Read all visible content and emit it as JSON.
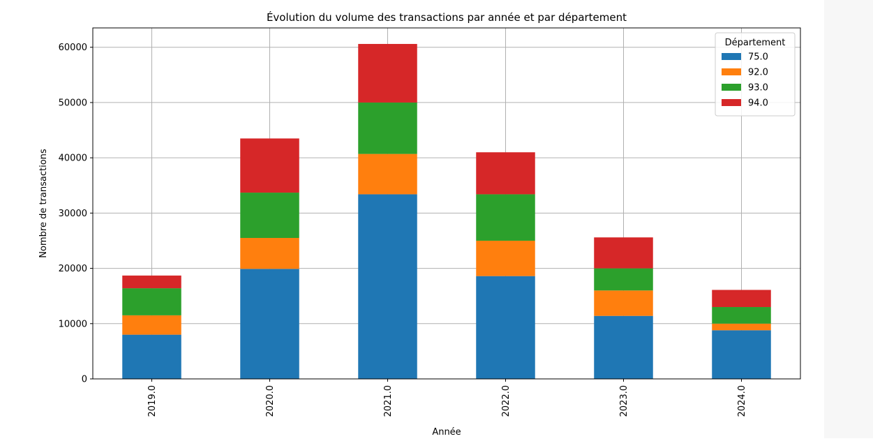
{
  "chart_data": {
    "type": "bar",
    "stacked": true,
    "title": "Évolution du volume des transactions par année et par département",
    "xlabel": "Année",
    "ylabel": "Nombre de transactions",
    "categories": [
      "2019.0",
      "2020.0",
      "2021.0",
      "2022.0",
      "2023.0",
      "2024.0"
    ],
    "yticks": [
      "0",
      "10000",
      "20000",
      "30000",
      "40000",
      "50000",
      "60000"
    ],
    "ylim": [
      0,
      63500
    ],
    "grid": true,
    "legend": {
      "title": "Département",
      "position": "top-right"
    },
    "series": [
      {
        "name": "75.0",
        "color": "#1f77b4",
        "values": [
          8000,
          19900,
          33400,
          18600,
          11400,
          8800
        ]
      },
      {
        "name": "92.0",
        "color": "#ff7f0e",
        "values": [
          3500,
          5600,
          7300,
          6400,
          4600,
          1200
        ]
      },
      {
        "name": "93.0",
        "color": "#2ca02c",
        "values": [
          4900,
          8200,
          9300,
          8400,
          4000,
          3000
        ]
      },
      {
        "name": "94.0",
        "color": "#d62728",
        "values": [
          2300,
          9800,
          10600,
          7600,
          5600,
          3100
        ]
      }
    ]
  }
}
